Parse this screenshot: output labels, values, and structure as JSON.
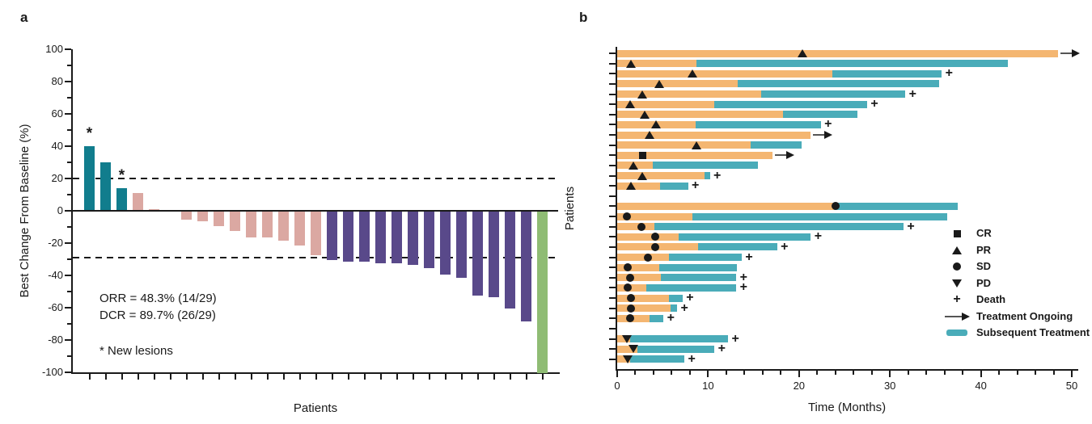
{
  "page": {
    "background": "#ffffff"
  },
  "panels": {
    "a": {
      "label": "a"
    },
    "b": {
      "label": "b"
    }
  },
  "colors": {
    "pd_bar": "#117d8d",
    "sd_bar": "#dba8a2",
    "pr_bar": "#59498a",
    "cr_bar": "#8fbc74",
    "treatment_bar": "#f4b671",
    "subsequent_bar": "#4aacb9",
    "marker": "#1a1a1a",
    "axis": "#1a1a1a",
    "arrow_line": "#555555"
  },
  "chart_data": [
    {
      "type": "bar",
      "subtype": "waterfall",
      "panel": "a",
      "title": "",
      "xlabel": "Patients",
      "ylabel": "Best Change From Baseline (%)",
      "ylim": [
        -100,
        100
      ],
      "ytick_step": 20,
      "ytick_minor_step": 10,
      "grid": false,
      "reference_lines_pct": [
        20,
        -29
      ],
      "annotations": {
        "orr": "ORR = 48.3% (14/29)",
        "dcr": "DCR = 89.7% (26/29)",
        "note": "* New lesions",
        "star": "*"
      },
      "categories_legend": {
        "PD": "pd_bar",
        "SD": "sd_bar",
        "PR": "pr_bar",
        "CR": "cr_bar"
      },
      "bars": [
        {
          "value": 40,
          "status": "PD",
          "new_lesions": true
        },
        {
          "value": 30,
          "status": "PD",
          "new_lesions": false
        },
        {
          "value": 14,
          "status": "PD",
          "new_lesions": true
        },
        {
          "value": 11,
          "status": "SD",
          "new_lesions": false
        },
        {
          "value": 1,
          "status": "SD",
          "new_lesions": false
        },
        {
          "value": 0,
          "status": "SD",
          "new_lesions": false
        },
        {
          "value": -5,
          "status": "SD",
          "new_lesions": false
        },
        {
          "value": -6,
          "status": "SD",
          "new_lesions": false
        },
        {
          "value": -9,
          "status": "SD",
          "new_lesions": false
        },
        {
          "value": -12,
          "status": "SD",
          "new_lesions": false
        },
        {
          "value": -16,
          "status": "SD",
          "new_lesions": false
        },
        {
          "value": -16,
          "status": "SD",
          "new_lesions": false
        },
        {
          "value": -18,
          "status": "SD",
          "new_lesions": false
        },
        {
          "value": -21,
          "status": "SD",
          "new_lesions": false
        },
        {
          "value": -27,
          "status": "SD",
          "new_lesions": false
        },
        {
          "value": -30,
          "status": "PR",
          "new_lesions": false
        },
        {
          "value": -31,
          "status": "PR",
          "new_lesions": false
        },
        {
          "value": -31,
          "status": "PR",
          "new_lesions": false
        },
        {
          "value": -32,
          "status": "PR",
          "new_lesions": false
        },
        {
          "value": -32,
          "status": "PR",
          "new_lesions": false
        },
        {
          "value": -33,
          "status": "PR",
          "new_lesions": false
        },
        {
          "value": -35,
          "status": "PR",
          "new_lesions": false
        },
        {
          "value": -39,
          "status": "PR",
          "new_lesions": false
        },
        {
          "value": -41,
          "status": "PR",
          "new_lesions": false
        },
        {
          "value": -52,
          "status": "PR",
          "new_lesions": false
        },
        {
          "value": -53,
          "status": "PR",
          "new_lesions": false
        },
        {
          "value": -60,
          "status": "PR",
          "new_lesions": false
        },
        {
          "value": -68,
          "status": "PR",
          "new_lesions": false
        },
        {
          "value": -100,
          "status": "CR",
          "new_lesions": false
        }
      ]
    },
    {
      "type": "bar",
      "subtype": "swimmer",
      "panel": "b",
      "title": "",
      "xlabel": "Time (Months)",
      "ylabel": "Patients",
      "xlim": [
        0,
        50
      ],
      "xticks": [
        0,
        10,
        20,
        30,
        40,
        50
      ],
      "xtick_minor_step": 2,
      "legend": [
        {
          "marker": "square",
          "label": "CR"
        },
        {
          "marker": "triangle-up",
          "label": "PR"
        },
        {
          "marker": "circle",
          "label": "SD"
        },
        {
          "marker": "triangle-down",
          "label": "PD"
        },
        {
          "marker": "plus",
          "label": "Death"
        },
        {
          "marker": "arrow",
          "label": "Treatment Ongoing"
        },
        {
          "marker": "bar-swatch",
          "label": "Subsequent Treatment"
        }
      ],
      "rows": [
        {
          "group": "responders",
          "treatment_months": 48.5,
          "subsequent_months": null,
          "response": "PR",
          "response_month": 20.4,
          "death": false,
          "ongoing": true
        },
        {
          "group": "responders",
          "treatment_months": 8.7,
          "subsequent_months": 43.0,
          "response": "PR",
          "response_month": 1.5,
          "death": false,
          "ongoing": false
        },
        {
          "group": "responders",
          "treatment_months": 23.7,
          "subsequent_months": 35.7,
          "response": "PR",
          "response_month": 8.3,
          "death": true,
          "ongoing": false
        },
        {
          "group": "responders",
          "treatment_months": 13.3,
          "subsequent_months": 35.4,
          "response": "PR",
          "response_month": 4.6,
          "death": false,
          "ongoing": false
        },
        {
          "group": "responders",
          "treatment_months": 15.8,
          "subsequent_months": 31.7,
          "response": "PR",
          "response_month": 2.8,
          "death": true,
          "ongoing": false
        },
        {
          "group": "responders",
          "treatment_months": 10.7,
          "subsequent_months": 27.5,
          "response": "PR",
          "response_month": 1.4,
          "death": true,
          "ongoing": false
        },
        {
          "group": "responders",
          "treatment_months": 18.2,
          "subsequent_months": 26.4,
          "response": "PR",
          "response_month": 3.0,
          "death": false,
          "ongoing": false
        },
        {
          "group": "responders",
          "treatment_months": 8.6,
          "subsequent_months": 22.4,
          "response": "PR",
          "response_month": 4.3,
          "death": true,
          "ongoing": false
        },
        {
          "group": "responders",
          "treatment_months": 21.3,
          "subsequent_months": null,
          "response": "PR",
          "response_month": 3.6,
          "death": false,
          "ongoing": true
        },
        {
          "group": "responders",
          "treatment_months": 14.7,
          "subsequent_months": 20.3,
          "response": "PR",
          "response_month": 8.7,
          "death": false,
          "ongoing": false
        },
        {
          "group": "responders",
          "treatment_months": 17.1,
          "subsequent_months": null,
          "response": "CR",
          "response_month": 2.8,
          "death": false,
          "ongoing": true
        },
        {
          "group": "responders",
          "treatment_months": 3.9,
          "subsequent_months": 15.5,
          "response": "PR",
          "response_month": 1.8,
          "death": false,
          "ongoing": false
        },
        {
          "group": "responders",
          "treatment_months": 9.6,
          "subsequent_months": 10.2,
          "response": "PR",
          "response_month": 2.8,
          "death": true,
          "ongoing": false
        },
        {
          "group": "responders",
          "treatment_months": 4.7,
          "subsequent_months": 7.8,
          "response": "PR",
          "response_month": 1.5,
          "death": true,
          "ongoing": false
        },
        {
          "group": "stable",
          "treatment_months": 23.8,
          "subsequent_months": 37.5,
          "response": "SD",
          "response_month": 24.0,
          "death": false,
          "ongoing": false
        },
        {
          "group": "stable",
          "treatment_months": 8.3,
          "subsequent_months": 36.3,
          "response": "SD",
          "response_month": 1.1,
          "death": false,
          "ongoing": false
        },
        {
          "group": "stable",
          "treatment_months": 4.1,
          "subsequent_months": 31.5,
          "response": "SD",
          "response_month": 2.7,
          "death": true,
          "ongoing": false
        },
        {
          "group": "stable",
          "treatment_months": 6.8,
          "subsequent_months": 21.3,
          "response": "SD",
          "response_month": 4.2,
          "death": true,
          "ongoing": false
        },
        {
          "group": "stable",
          "treatment_months": 8.9,
          "subsequent_months": 17.6,
          "response": "SD",
          "response_month": 4.2,
          "death": true,
          "ongoing": false
        },
        {
          "group": "stable",
          "treatment_months": 5.7,
          "subsequent_months": 13.7,
          "response": "SD",
          "response_month": 3.4,
          "death": true,
          "ongoing": false
        },
        {
          "group": "stable",
          "treatment_months": 4.6,
          "subsequent_months": 13.2,
          "response": "SD",
          "response_month": 1.2,
          "death": false,
          "ongoing": false
        },
        {
          "group": "stable",
          "treatment_months": 4.8,
          "subsequent_months": 13.1,
          "response": "SD",
          "response_month": 1.4,
          "death": true,
          "ongoing": false
        },
        {
          "group": "stable",
          "treatment_months": 3.2,
          "subsequent_months": 13.1,
          "response": "SD",
          "response_month": 1.2,
          "death": true,
          "ongoing": false
        },
        {
          "group": "stable",
          "treatment_months": 5.7,
          "subsequent_months": 7.2,
          "response": "SD",
          "response_month": 1.5,
          "death": true,
          "ongoing": false
        },
        {
          "group": "stable",
          "treatment_months": 5.9,
          "subsequent_months": 6.6,
          "response": "SD",
          "response_month": 1.5,
          "death": true,
          "ongoing": false
        },
        {
          "group": "stable",
          "treatment_months": 3.6,
          "subsequent_months": 5.1,
          "response": "SD",
          "response_month": 1.4,
          "death": true,
          "ongoing": false
        },
        {
          "group": "progression",
          "treatment_months": 1.4,
          "subsequent_months": 12.2,
          "response": "PD",
          "response_month": 1.1,
          "death": true,
          "ongoing": false
        },
        {
          "group": "progression",
          "treatment_months": 2.2,
          "subsequent_months": 10.7,
          "response": "PD",
          "response_month": 1.8,
          "death": true,
          "ongoing": false
        },
        {
          "group": "progression",
          "treatment_months": 1.4,
          "subsequent_months": 7.4,
          "response": "PD",
          "response_month": 1.2,
          "death": true,
          "ongoing": false
        }
      ]
    }
  ]
}
